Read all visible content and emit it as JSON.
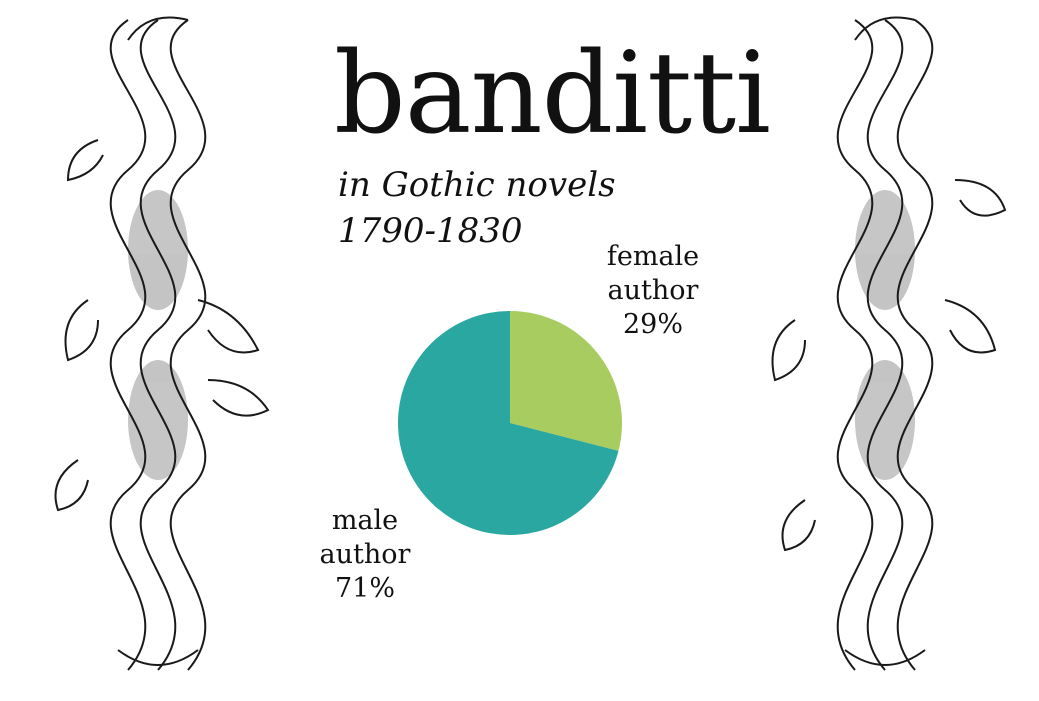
{
  "title": "banditti",
  "subtitle_line1": "in Gothic novels",
  "subtitle_line2": "1790-1830",
  "ornaments": {
    "left": "scroll-ornament-icon",
    "right": "scroll-ornament-icon"
  },
  "chart_data": {
    "type": "pie",
    "title": "",
    "categories": [
      "female author",
      "male author"
    ],
    "values": [
      29,
      71
    ],
    "unit": "%",
    "colors": [
      "#a8cc5f",
      "#2aa7a0"
    ],
    "labels": [
      {
        "line1": "female",
        "line2": "author",
        "line3": "29%"
      },
      {
        "line1": "male",
        "line2": "author",
        "line3": "71%"
      }
    ],
    "legend": "none"
  }
}
